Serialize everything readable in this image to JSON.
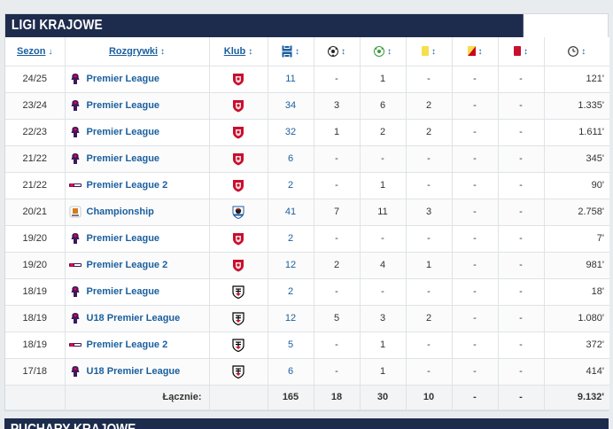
{
  "section_title": "LIGI KRAJOWE",
  "next_section_title": "PUCHARY KRAJOWE",
  "headers": {
    "season": "Sezon",
    "competition": "Rozgrywki",
    "club": "Klub"
  },
  "rows": [
    {
      "season": "24/25",
      "competition": "Premier League",
      "comp_logo": "premier-league",
      "club": "liverpool",
      "apps": "11",
      "goals": "-",
      "assists": "1",
      "yellow": "-",
      "second_yellow": "-",
      "red": "-",
      "minutes": "121'"
    },
    {
      "season": "23/24",
      "competition": "Premier League",
      "comp_logo": "premier-league",
      "club": "liverpool",
      "apps": "34",
      "goals": "3",
      "assists": "6",
      "yellow": "2",
      "second_yellow": "-",
      "red": "-",
      "minutes": "1.335'"
    },
    {
      "season": "22/23",
      "competition": "Premier League",
      "comp_logo": "premier-league",
      "club": "liverpool",
      "apps": "32",
      "goals": "1",
      "assists": "2",
      "yellow": "2",
      "second_yellow": "-",
      "red": "-",
      "minutes": "1.611'"
    },
    {
      "season": "21/22",
      "competition": "Premier League",
      "comp_logo": "premier-league",
      "club": "liverpool",
      "apps": "6",
      "goals": "-",
      "assists": "-",
      "yellow": "-",
      "second_yellow": "-",
      "red": "-",
      "minutes": "345'"
    },
    {
      "season": "21/22",
      "competition": "Premier League 2",
      "comp_logo": "premier-league-2",
      "club": "liverpool",
      "apps": "2",
      "goals": "-",
      "assists": "1",
      "yellow": "-",
      "second_yellow": "-",
      "red": "-",
      "minutes": "90'"
    },
    {
      "season": "20/21",
      "competition": "Championship",
      "comp_logo": "championship",
      "club": "blackburn",
      "apps": "41",
      "goals": "7",
      "assists": "11",
      "yellow": "3",
      "second_yellow": "-",
      "red": "-",
      "minutes": "2.758'"
    },
    {
      "season": "19/20",
      "competition": "Premier League",
      "comp_logo": "premier-league",
      "club": "liverpool",
      "apps": "2",
      "goals": "-",
      "assists": "-",
      "yellow": "-",
      "second_yellow": "-",
      "red": "-",
      "minutes": "7'"
    },
    {
      "season": "19/20",
      "competition": "Premier League 2",
      "comp_logo": "premier-league-2",
      "club": "liverpool",
      "apps": "12",
      "goals": "2",
      "assists": "4",
      "yellow": "1",
      "second_yellow": "-",
      "red": "-",
      "minutes": "981'"
    },
    {
      "season": "18/19",
      "competition": "Premier League",
      "comp_logo": "premier-league",
      "club": "fulham",
      "apps": "2",
      "goals": "-",
      "assists": "-",
      "yellow": "-",
      "second_yellow": "-",
      "red": "-",
      "minutes": "18'"
    },
    {
      "season": "18/19",
      "competition": "U18 Premier League",
      "comp_logo": "premier-league",
      "club": "fulham",
      "apps": "12",
      "goals": "5",
      "assists": "3",
      "yellow": "2",
      "second_yellow": "-",
      "red": "-",
      "minutes": "1.080'"
    },
    {
      "season": "18/19",
      "competition": "Premier League 2",
      "comp_logo": "premier-league-2",
      "club": "fulham",
      "apps": "5",
      "goals": "-",
      "assists": "1",
      "yellow": "-",
      "second_yellow": "-",
      "red": "-",
      "minutes": "372'"
    },
    {
      "season": "17/18",
      "competition": "U18 Premier League",
      "comp_logo": "premier-league",
      "club": "fulham",
      "apps": "6",
      "goals": "-",
      "assists": "1",
      "yellow": "-",
      "second_yellow": "-",
      "red": "-",
      "minutes": "414'"
    }
  ],
  "totals": {
    "label": "Łącznie:",
    "apps": "165",
    "goals": "18",
    "assists": "30",
    "yellow": "10",
    "second_yellow": "-",
    "red": "-",
    "minutes": "9.132'"
  },
  "colors": {
    "header_bg": "#1d2c4c",
    "link": "#1a5f9e",
    "liverpool": "#c8102e",
    "blackburn": "#1d5ba4",
    "fulham": "#000000",
    "yellow_card": "#f4e04d",
    "red_card": "#d0021b"
  }
}
